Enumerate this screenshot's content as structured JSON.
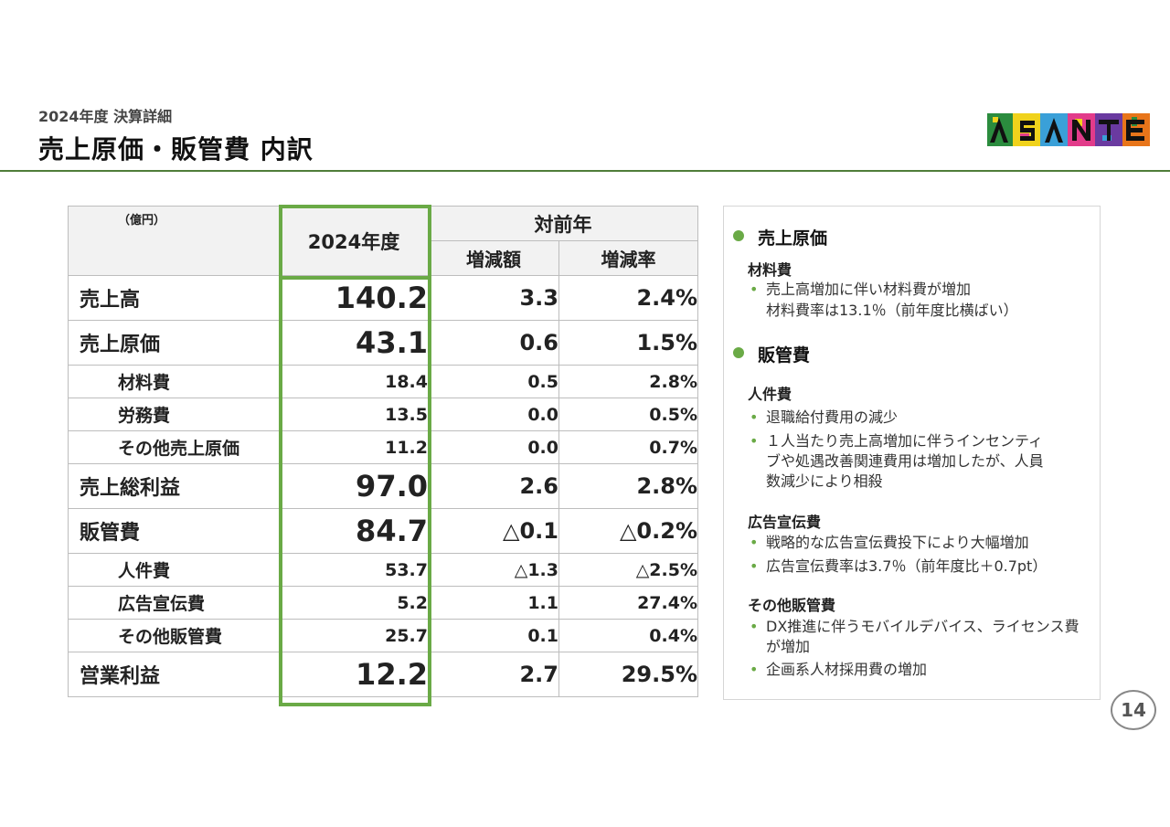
{
  "header": {
    "subtitle": "2024年度 決算詳細",
    "title": "売上原価・販管費 内訳"
  },
  "logo": {
    "text": "ASANTE",
    "colors": [
      "#2b8c3e",
      "#f0d21c",
      "#e23b8a",
      "#6a3aa0",
      "#3aa0d8",
      "#e8751a"
    ]
  },
  "table": {
    "unit": "（億円）",
    "current_header": "2024年度",
    "yoy_header": "対前年",
    "diff_header": "増減額",
    "rate_header": "増減率",
    "rows": [
      {
        "label": "売上高",
        "value": "140.2",
        "diff": "3.3",
        "rate": "2.4%",
        "size": "big"
      },
      {
        "label": "売上原価",
        "value": "43.1",
        "diff": "0.6",
        "rate": "1.5%",
        "size": "big"
      },
      {
        "label": "材料費",
        "value": "18.4",
        "diff": "0.5",
        "rate": "2.8%",
        "size": "small"
      },
      {
        "label": "労務費",
        "value": "13.5",
        "diff": "0.0",
        "rate": "0.5%",
        "size": "small"
      },
      {
        "label": "その他売上原価",
        "value": "11.2",
        "diff": "0.0",
        "rate": "0.7%",
        "size": "small"
      },
      {
        "label": "売上総利益",
        "value": "97.0",
        "diff": "2.6",
        "rate": "2.8%",
        "size": "big"
      },
      {
        "label": "販管費",
        "value": "84.7",
        "diff": "△0.1",
        "rate": "△0.2%",
        "size": "big"
      },
      {
        "label": "人件費",
        "value": "53.7",
        "diff": "△1.3",
        "rate": "△2.5%",
        "size": "small"
      },
      {
        "label": "広告宣伝費",
        "value": "5.2",
        "diff": "1.1",
        "rate": "27.4%",
        "size": "small"
      },
      {
        "label": "その他販管費",
        "value": "25.7",
        "diff": "0.1",
        "rate": "0.4%",
        "size": "small"
      },
      {
        "label": "営業利益",
        "value": "12.2",
        "diff": "2.7",
        "rate": "29.5%",
        "size": "big"
      }
    ]
  },
  "notes": {
    "cogs": {
      "title": "売上原価",
      "material_title": "材料費",
      "material_1": "売上高増加に伴い材料費が増加",
      "material_2": "材料費率は13.1％（前年度比横ばい）"
    },
    "sga": {
      "title": "販管費",
      "personnel_title": "人件費",
      "personnel_1": "退職給付費用の減少",
      "personnel_2": "１人当たり売上高増加に伴うインセンティブや処遇改善関連費用は増加したが、人員数減少により相殺",
      "ad_title": "広告宣伝費",
      "ad_1": "戦略的な広告宣伝費投下により大幅増加",
      "ad_2": "広告宣伝費率は3.7％（前年度比＋0.7pt）",
      "other_title": "その他販管費",
      "other_1": "DX推進に伴うモバイルデバイス、ライセンス費が増加",
      "other_2": "企画系人材採用費の増加"
    }
  },
  "page_number": "14"
}
